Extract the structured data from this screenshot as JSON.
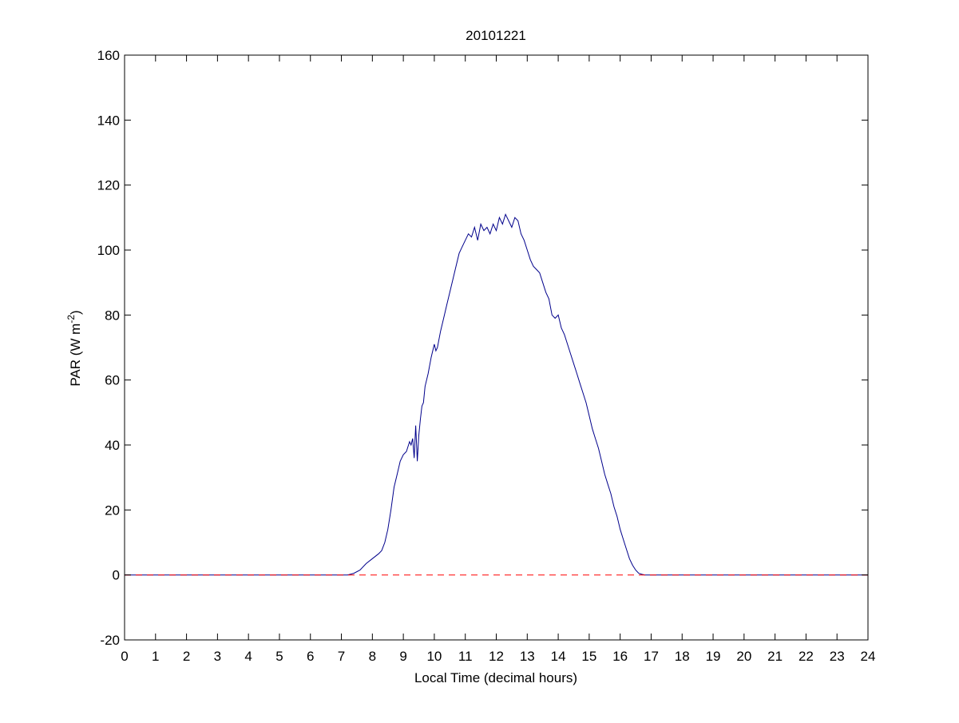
{
  "chart_data": {
    "type": "line",
    "title": "20101221",
    "xlabel": "Local Time (decimal hours)",
    "ylabel": {
      "main": "PAR (W m",
      "superscript": "-2",
      "close": ")"
    },
    "xlim": [
      0,
      24
    ],
    "ylim": [
      -20,
      160
    ],
    "xticks": [
      0,
      1,
      2,
      3,
      4,
      5,
      6,
      7,
      8,
      9,
      10,
      11,
      12,
      13,
      14,
      15,
      16,
      17,
      18,
      19,
      20,
      21,
      22,
      23,
      24
    ],
    "yticks": [
      -20,
      0,
      20,
      40,
      60,
      80,
      100,
      120,
      140,
      160
    ],
    "grid": false,
    "legend": "none",
    "series": [
      {
        "color": "#00008b",
        "style": "solid",
        "x": [
          0,
          7.0,
          7.2,
          7.4,
          7.6,
          7.8,
          8.0,
          8.2,
          8.3,
          8.4,
          8.5,
          8.6,
          8.7,
          8.8,
          8.9,
          9.0,
          9.1,
          9.2,
          9.25,
          9.3,
          9.35,
          9.4,
          9.45,
          9.5,
          9.55,
          9.6,
          9.65,
          9.7,
          9.8,
          9.9,
          10.0,
          10.05,
          10.1,
          10.2,
          10.3,
          10.4,
          10.5,
          10.6,
          10.7,
          10.8,
          10.9,
          11.0,
          11.1,
          11.2,
          11.3,
          11.4,
          11.5,
          11.6,
          11.7,
          11.8,
          11.9,
          12.0,
          12.1,
          12.2,
          12.3,
          12.4,
          12.5,
          12.6,
          12.7,
          12.8,
          12.9,
          13.0,
          13.1,
          13.2,
          13.3,
          13.4,
          13.5,
          13.6,
          13.7,
          13.8,
          13.9,
          14.0,
          14.1,
          14.2,
          14.3,
          14.4,
          14.5,
          14.6,
          14.7,
          14.8,
          14.9,
          15.0,
          15.1,
          15.2,
          15.3,
          15.4,
          15.5,
          15.6,
          15.7,
          15.8,
          15.9,
          16.0,
          16.1,
          16.2,
          16.3,
          16.4,
          16.5,
          16.6,
          16.7,
          16.8,
          16.9,
          17.0,
          17.1,
          17.2,
          17.5,
          24
        ],
        "y": [
          0,
          0,
          0,
          0.5,
          1.5,
          3.5,
          5,
          6.5,
          7.5,
          10,
          14,
          20,
          27,
          31,
          35,
          37,
          38,
          41,
          40,
          42,
          36,
          46,
          35,
          43,
          48,
          52,
          53,
          58,
          62,
          67,
          71,
          69,
          70,
          75,
          79,
          83,
          87,
          91,
          95,
          99,
          101,
          103,
          105,
          104,
          107,
          103,
          108,
          106,
          107,
          105,
          108,
          106,
          110,
          108,
          111,
          109,
          107,
          110,
          109,
          105,
          103,
          100,
          97,
          95,
          94,
          93,
          90,
          87,
          85,
          80,
          79,
          80,
          76,
          74,
          71,
          68,
          65,
          62,
          59,
          56,
          53,
          49,
          45,
          42,
          39,
          35,
          31,
          28,
          25,
          21,
          18,
          14,
          11,
          8,
          5,
          3,
          1.5,
          0.5,
          0.2,
          0,
          0,
          0,
          0,
          0,
          0,
          0
        ]
      },
      {
        "color": "#ff0000",
        "style": "dashed",
        "x": [
          0,
          24
        ],
        "y": [
          0,
          0
        ]
      }
    ]
  }
}
